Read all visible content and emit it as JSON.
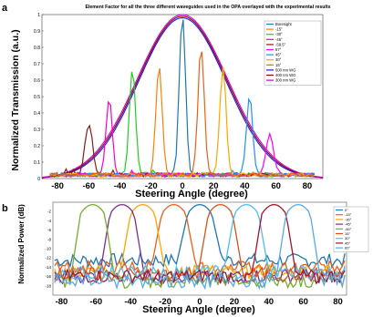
{
  "chart_data": [
    {
      "panel": "a",
      "type": "line",
      "title": "Element Factor for all the three different waveguides used in the OPA overlayed with the experimental results",
      "xlabel": "Steering Angle (degree)",
      "ylabel": "Normalized Transmission (a.u.)",
      "xlim": [
        -90,
        90
      ],
      "ylim": [
        0,
        1
      ],
      "xticks": [
        -80,
        -60,
        -40,
        -20,
        0,
        20,
        40,
        60,
        80
      ],
      "yticks": [
        0,
        0.1,
        0.2,
        0.3,
        0.4,
        0.5,
        0.6,
        0.7,
        0.8,
        0.9,
        1
      ],
      "grid": false,
      "legend_position": "top-right",
      "series": [
        {
          "name": "Boresight",
          "color": "#1f77b4",
          "peak_x": 0,
          "peak_y": 0.98,
          "width": 2
        },
        {
          "name": "-15°",
          "color": "#ff7f0e",
          "peak_x": -15,
          "peak_y": 0.67,
          "width": 2
        },
        {
          "name": "-30°",
          "color": "#22cc22",
          "peak_x": -32,
          "peak_y": 0.65,
          "width": 2
        },
        {
          "name": "-45°",
          "color": "#ff00cc",
          "peak_x": -47,
          "peak_y": 0.47,
          "width": 2
        },
        {
          "name": "-58.5°",
          "color": "#8b1a1a",
          "peak_x": -60,
          "peak_y": 0.3,
          "width": 2.5
        },
        {
          "name": "57°",
          "color": "#ff00ff",
          "peak_x": 56,
          "peak_y": 0.25,
          "width": 2.5
        },
        {
          "name": "45°",
          "color": "#1e90ff",
          "peak_x": 43,
          "peak_y": 0.48,
          "width": 2
        },
        {
          "name": "30°",
          "color": "#ffa500",
          "peak_x": 26,
          "peak_y": 0.67,
          "width": 2
        },
        {
          "name": "15°",
          "color": "#e8601c",
          "peak_x": 12,
          "peak_y": 0.78,
          "width": 2
        },
        {
          "name": "500 nm WG",
          "color": "#1a1aff",
          "envelope_sigma": 28,
          "peak_y": 0.98
        },
        {
          "name": "400 nm WG",
          "color": "#8b0000",
          "envelope_sigma": 28.5,
          "peak_y": 0.99
        },
        {
          "name": "300 nm WG",
          "color": "#cc00cc",
          "envelope_sigma": 29,
          "peak_y": 1.0
        }
      ]
    },
    {
      "panel": "b",
      "type": "line",
      "xlabel": "Steering Angle (degree)",
      "ylabel": "Normalized Power (dB)",
      "xlim": [
        -85,
        85
      ],
      "ylim": [
        -20,
        0
      ],
      "xticks": [
        -80,
        -60,
        -40,
        -20,
        0,
        20,
        40,
        60,
        80
      ],
      "yticks": [
        -2,
        -4,
        -6,
        -8,
        -10,
        -12,
        -14,
        -16,
        -18
      ],
      "grid": false,
      "legend_position": "right",
      "series": [
        {
          "name": "0°",
          "color": "#1f77b4",
          "peak_x": 0,
          "floor": -12.5
        },
        {
          "name": "-15°",
          "color": "#e8601c",
          "peak_x": -15,
          "floor": -14
        },
        {
          "name": "-30°",
          "color": "#ffa500",
          "peak_x": -33,
          "floor": -15
        },
        {
          "name": "-45°",
          "color": "#7e2f8e",
          "peak_x": -45,
          "floor": -16
        },
        {
          "name": "-60°",
          "color": "#77ac30",
          "peak_x": -62,
          "floor": -17
        },
        {
          "name": "15°",
          "color": "#d95319",
          "peak_x": 12,
          "floor": -15.5
        },
        {
          "name": "30°",
          "color": "#4dbeee",
          "peak_x": 27,
          "floor": -15
        },
        {
          "name": "45°",
          "color": "#a2142f",
          "peak_x": 43,
          "floor": -16
        },
        {
          "name": "60°",
          "color": "#55aaee",
          "peak_x": 57,
          "floor": -17
        }
      ]
    }
  ]
}
